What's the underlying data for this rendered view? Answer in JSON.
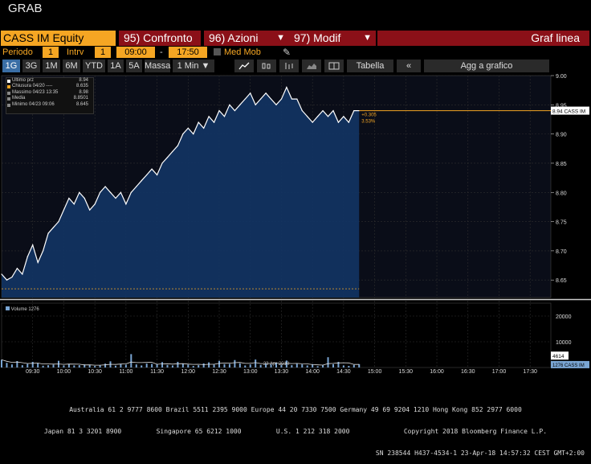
{
  "window": {
    "title": "GRAB"
  },
  "toolbar": {
    "ticker": "CASS IM Equity",
    "btn_confronto_num": "95)",
    "btn_confronto": "Confronto",
    "btn_azioni_num": "96)",
    "btn_azioni": "Azioni",
    "btn_modif_num": "97)",
    "btn_modif": "Modif",
    "chart_type": "Graf linea"
  },
  "params": {
    "periodo_label": "Periodo",
    "periodo_value": "1",
    "intrv_label": "Intrv",
    "intrv_value": "1",
    "start_time": "09:00",
    "dash": "-",
    "end_time": "17:50",
    "med_mob": "Med Mob"
  },
  "ranges": {
    "buttons": [
      "1G",
      "3G",
      "1M",
      "6M",
      "YTD",
      "1A",
      "5A",
      "Massa",
      "1 Min ▼"
    ],
    "active": "1G",
    "tabella": "Tabella",
    "add_chart": "Agg a grafico"
  },
  "legend": {
    "rows": [
      {
        "label": "Ultimo prz",
        "value": "8.94",
        "color": "#ffffff"
      },
      {
        "label": "Chiusura 04/20 ----",
        "value": "8.635",
        "color": "#f5a623"
      },
      {
        "label": "Massimo 04/23 13:35",
        "value": "8.98",
        "color": "#888888"
      },
      {
        "label": "Media",
        "value": "8.8501",
        "color": "#888888"
      },
      {
        "label": "Minimo 04/23 09:06",
        "value": "8.645",
        "color": "#888888"
      }
    ],
    "volume_label": "Volume 1276"
  },
  "chart_data": {
    "type": "area",
    "x": [
      "09:00",
      "09:05",
      "09:10",
      "09:15",
      "09:20",
      "09:25",
      "09:30",
      "09:35",
      "09:40",
      "09:45",
      "09:50",
      "09:55",
      "10:00",
      "10:05",
      "10:10",
      "10:15",
      "10:20",
      "10:25",
      "10:30",
      "10:35",
      "10:40",
      "10:45",
      "10:50",
      "10:55",
      "11:00",
      "11:05",
      "11:10",
      "11:15",
      "11:20",
      "11:25",
      "11:30",
      "11:35",
      "11:40",
      "11:45",
      "11:50",
      "11:55",
      "12:00",
      "12:05",
      "12:10",
      "12:15",
      "12:20",
      "12:25",
      "12:30",
      "12:35",
      "12:40",
      "12:45",
      "12:50",
      "12:55",
      "13:00",
      "13:05",
      "13:10",
      "13:15",
      "13:20",
      "13:25",
      "13:30",
      "13:35",
      "13:40",
      "13:45",
      "13:50",
      "13:55",
      "14:00",
      "14:05",
      "14:10",
      "14:15",
      "14:20",
      "14:25",
      "14:30",
      "14:35",
      "14:40",
      "14:45"
    ],
    "y": [
      8.66,
      8.65,
      8.655,
      8.67,
      8.66,
      8.69,
      8.71,
      8.68,
      8.7,
      8.73,
      8.74,
      8.75,
      8.77,
      8.79,
      8.78,
      8.8,
      8.79,
      8.77,
      8.78,
      8.8,
      8.81,
      8.8,
      8.79,
      8.8,
      8.78,
      8.8,
      8.81,
      8.82,
      8.83,
      8.84,
      8.83,
      8.85,
      8.86,
      8.87,
      8.88,
      8.9,
      8.91,
      8.9,
      8.92,
      8.91,
      8.93,
      8.92,
      8.94,
      8.93,
      8.95,
      8.94,
      8.95,
      8.96,
      8.97,
      8.95,
      8.96,
      8.97,
      8.96,
      8.95,
      8.96,
      8.98,
      8.96,
      8.96,
      8.94,
      8.93,
      8.92,
      8.93,
      8.94,
      8.93,
      8.94,
      8.92,
      8.93,
      8.92,
      8.94,
      8.94
    ],
    "prev_close": 8.635,
    "last": 8.94,
    "last_label": "8.94 CASS IM",
    "change_abs": "+0.305",
    "change_pct": "3.53%",
    "ylim": [
      8.62,
      9.0
    ],
    "y_ticks": [
      "9.00",
      "8.95",
      "8.90",
      "8.85",
      "8.80",
      "8.75",
      "8.70",
      "8.65"
    ],
    "x_ticks": [
      "09:30",
      "10:00",
      "10:30",
      "11:00",
      "11:30",
      "12:00",
      "12:30",
      "13:00",
      "13:30",
      "14:00",
      "14:30",
      "15:00",
      "15:30",
      "16:00",
      "16:30",
      "17:00",
      "17:30"
    ],
    "date_label": "23 Apr 2018",
    "volume": {
      "values": [
        3000,
        1800,
        1200,
        2500,
        900,
        1400,
        2200,
        1600,
        700,
        900,
        1100,
        2600,
        800,
        1300,
        800,
        900,
        1200,
        1000,
        600,
        800,
        1500,
        2400,
        700,
        1300,
        1100,
        5200,
        1200,
        800,
        1500,
        1400,
        1300,
        2100,
        1000,
        800,
        2200,
        1400,
        1100,
        600,
        900,
        1600,
        2000,
        1100,
        2600,
        1300,
        1400,
        2900,
        1600,
        800,
        1200,
        3100,
        1000,
        1500,
        1200,
        1900,
        1000,
        2700,
        900,
        1400,
        1200,
        800,
        1300,
        500,
        900,
        4000,
        1300,
        2200,
        800,
        600,
        1000,
        1300
      ],
      "ylim": [
        0,
        25000
      ],
      "ticks": [
        "20000",
        "10000"
      ],
      "last_label": "1276 CASS IM",
      "ma_label": "4614"
    }
  },
  "footer": {
    "line1": "Australia 61 2 9777 8600 Brazil 5511 2395 9000 Europe 44 20 7330 7500 Germany 49 69 9204 1210 Hong Kong 852 2977 6000",
    "line2": "Japan 81 3 3201 8900         Singapore 65 6212 1000         U.S. 1 212 318 2000              Copyright 2018 Bloomberg Finance L.P.",
    "line3": "SN 238544 H437-4534-1 23-Apr-18 14:57:32 CEST GMT+2:00"
  }
}
